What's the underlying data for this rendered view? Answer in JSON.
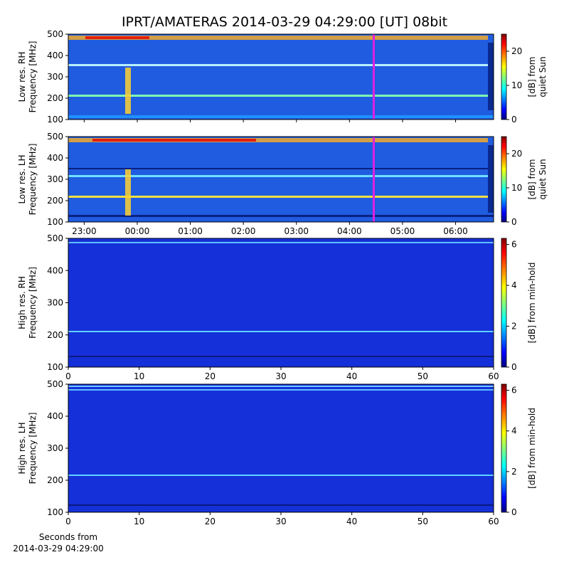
{
  "title": "IPRT/AMATERAS 2014-03-29 04:29:00 [UT]   08bit",
  "chart_data": [
    {
      "type": "heatmap",
      "ylabel": [
        "Low res. RH",
        "Frequency [MHz]"
      ],
      "ylim": [
        100,
        500
      ],
      "yticks": [
        100,
        200,
        300,
        400,
        500
      ],
      "xlim": [
        "2014-03-28 22:42",
        "2014-03-29 06:43"
      ],
      "xticks": [
        {
          "value": "2014-03-28 23:00",
          "label": "23:00"
        },
        {
          "value": "2014-03-29 00:00",
          "label": "00:00"
        },
        {
          "value": "2014-03-29 01:00",
          "label": "01:00"
        },
        {
          "value": "2014-03-29 02:00",
          "label": "02:00"
        },
        {
          "value": "2014-03-29 03:00",
          "label": "03:00"
        },
        {
          "value": "2014-03-29 04:00",
          "label": "04:00"
        },
        {
          "value": "2014-03-29 05:00",
          "label": "05:00"
        },
        {
          "value": "2014-03-29 06:00",
          "label": "06:00"
        }
      ],
      "clabel": [
        "[dB] from",
        "quiet Sun"
      ],
      "clim": [
        0,
        25
      ],
      "cticks": [
        0,
        10,
        20
      ]
    },
    {
      "type": "heatmap",
      "ylabel": [
        "Low res. LH",
        "Frequency [MHz]"
      ],
      "ylim": [
        100,
        500
      ],
      "yticks": [
        100,
        200,
        300,
        400,
        500
      ],
      "xlim": [
        "2014-03-28 22:42",
        "2014-03-29 06:43"
      ],
      "xticks": [
        {
          "value": "2014-03-28 23:00",
          "label": "23:00"
        },
        {
          "value": "2014-03-29 00:00",
          "label": "00:00"
        },
        {
          "value": "2014-03-29 01:00",
          "label": "01:00"
        },
        {
          "value": "2014-03-29 02:00",
          "label": "02:00"
        },
        {
          "value": "2014-03-29 03:00",
          "label": "03:00"
        },
        {
          "value": "2014-03-29 04:00",
          "label": "04:00"
        },
        {
          "value": "2014-03-29 05:00",
          "label": "05:00"
        },
        {
          "value": "2014-03-29 06:00",
          "label": "06:00"
        }
      ],
      "clabel": [
        "[dB] from",
        "quiet Sun"
      ],
      "clim": [
        0,
        25
      ],
      "cticks": [
        0,
        10,
        20
      ]
    },
    {
      "type": "heatmap",
      "ylabel": [
        "High res. RH",
        "Frequency [MHz]"
      ],
      "ylim": [
        100,
        500
      ],
      "yticks": [
        100,
        200,
        300,
        400,
        500
      ],
      "xlim": [
        0,
        60
      ],
      "xticks": [
        0,
        10,
        20,
        30,
        40,
        50,
        60
      ],
      "clabel": [
        "[dB] from min-hold"
      ],
      "clim": [
        0,
        6.3
      ],
      "cticks": [
        0,
        2,
        4,
        6
      ]
    },
    {
      "type": "heatmap",
      "ylabel": [
        "High res. LH",
        "Frequency [MHz]"
      ],
      "ylim": [
        100,
        500
      ],
      "yticks": [
        100,
        200,
        300,
        400,
        500
      ],
      "xlim": [
        0,
        60
      ],
      "xticks": [
        0,
        10,
        20,
        30,
        40,
        50,
        60
      ],
      "xlabel": [
        "Seconds from",
        "2014-03-29 04:29:00"
      ],
      "clabel": [
        "[dB] from min-hold"
      ],
      "clim": [
        0,
        6.3
      ],
      "cticks": [
        0,
        2,
        4,
        6
      ]
    }
  ]
}
